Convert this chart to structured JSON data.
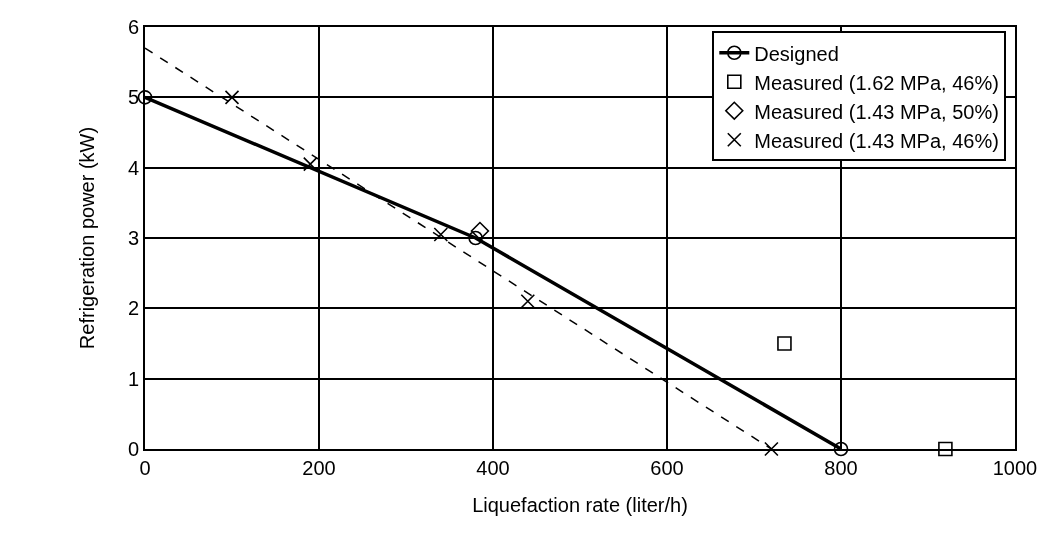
{
  "chart_data": {
    "type": "scatter",
    "xlabel": "Liquefaction rate (liter/h)",
    "ylabel": "Refrigeration power (kW)",
    "xlim": [
      0,
      1000
    ],
    "xticks": [
      0,
      200,
      400,
      600,
      800,
      1000
    ],
    "ylim": [
      0,
      6
    ],
    "yticks": [
      0,
      1,
      2,
      3,
      4,
      5,
      6
    ],
    "grid": true,
    "legend": "top right",
    "series": [
      {
        "name": "Designed",
        "type": "line",
        "color": "#000000",
        "marker": "circle",
        "line_style": "solid",
        "x": [
          0,
          380,
          800
        ],
        "values": [
          5,
          3,
          0
        ]
      },
      {
        "name": "Measured (1.62 MPa, 46%)",
        "color": "#000000",
        "marker": "square",
        "x": [
          735,
          920
        ],
        "values": [
          1.5,
          0
        ]
      },
      {
        "name": "Measured (1.43 MPa, 50%)",
        "color": "#000000",
        "marker": "diamond",
        "x": [
          385
        ],
        "values": [
          3.1
        ]
      },
      {
        "name": "Measured (1.43 MPa, 46%)",
        "color": "#000000",
        "marker": "cross",
        "x": [
          100,
          190,
          340,
          440,
          720
        ],
        "values": [
          5,
          4.05,
          3.05,
          2.1,
          0
        ]
      },
      {
        "type": "line",
        "color": "#000000",
        "marker": "none",
        "line_style": "dashed",
        "x": [
          0,
          720
        ],
        "values": [
          5.7,
          0
        ]
      }
    ]
  }
}
